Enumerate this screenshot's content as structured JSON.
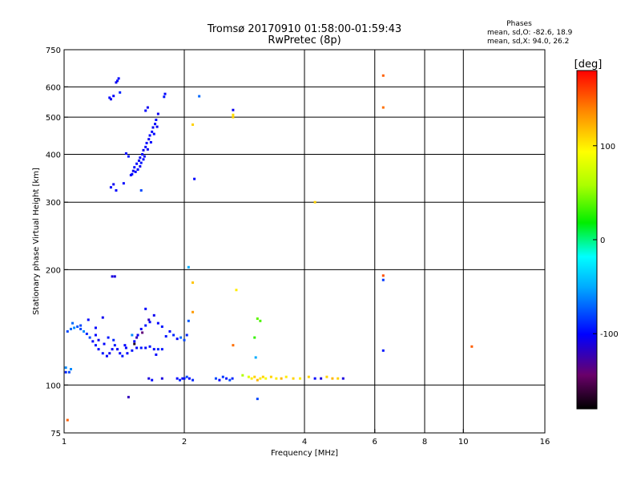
{
  "chart_data": {
    "type": "scatter",
    "title": "Tromsø 20170910 01:58:00-01:59:43",
    "subtitle": "RwPretec (8p)",
    "xlabel": "Frequency [MHz]",
    "ylabel": "Stationary phase Virtual Height [km]",
    "x_scale": "log",
    "y_scale": "log",
    "xlim": [
      1,
      16
    ],
    "ylim": [
      75,
      750
    ],
    "x_ticks": [
      1,
      2,
      4,
      6,
      8,
      10,
      16
    ],
    "y_ticks": [
      75,
      100,
      200,
      300,
      400,
      500,
      600,
      750
    ],
    "x_grid": [
      2,
      4,
      6,
      8,
      10
    ],
    "y_grid": [
      100,
      200,
      300,
      400,
      500,
      600
    ],
    "grid": true,
    "stats": {
      "title": "Phases",
      "line1": "mean, sd,O: -82.6, 18.9",
      "line2": "mean, sd,X:  94.0, 26.2"
    },
    "colorbar": {
      "label": "[deg]",
      "min": -180,
      "max": 180,
      "ticks": [
        100,
        0,
        -100
      ]
    },
    "points": [
      [
        1.37,
        631,
        -100
      ],
      [
        1.36,
        622,
        -100
      ],
      [
        1.35,
        616,
        -105
      ],
      [
        1.3,
        562,
        -100
      ],
      [
        1.31,
        557,
        -105
      ],
      [
        1.33,
        568,
        -100
      ],
      [
        1.38,
        580,
        -90
      ],
      [
        1.79,
        575,
        -100
      ],
      [
        1.78,
        565,
        -95
      ],
      [
        1.43,
        402,
        -100
      ],
      [
        1.45,
        395,
        -95
      ],
      [
        2.18,
        567,
        -70
      ],
      [
        2.65,
        522,
        -105
      ],
      [
        2.12,
        345,
        -100
      ],
      [
        1.56,
        322,
        -80
      ],
      [
        1.31,
        328,
        -100
      ],
      [
        1.33,
        334,
        -105
      ],
      [
        1.35,
        322,
        -100
      ],
      [
        1.41,
        336,
        -100
      ],
      [
        1.47,
        353,
        -100
      ],
      [
        1.49,
        362,
        -105
      ],
      [
        1.52,
        378,
        -100
      ],
      [
        1.55,
        392,
        -100
      ],
      [
        1.58,
        410,
        -105
      ],
      [
        1.61,
        428,
        -100
      ],
      [
        1.64,
        448,
        -100
      ],
      [
        1.67,
        470,
        -105
      ],
      [
        1.7,
        492,
        -100
      ],
      [
        1.72,
        510,
        -105
      ],
      [
        1.5,
        370,
        -100
      ],
      [
        1.54,
        385,
        -105
      ],
      [
        1.57,
        400,
        -100
      ],
      [
        1.6,
        418,
        -100
      ],
      [
        1.63,
        438,
        -105
      ],
      [
        1.66,
        458,
        -100
      ],
      [
        1.69,
        480,
        -100
      ],
      [
        1.53,
        365,
        -100
      ],
      [
        1.56,
        380,
        -95
      ],
      [
        1.59,
        395,
        -100
      ],
      [
        1.62,
        412,
        -105
      ],
      [
        1.65,
        430,
        -100
      ],
      [
        1.68,
        452,
        -100
      ],
      [
        1.71,
        472,
        -105
      ],
      [
        1.6,
        520,
        -100
      ],
      [
        1.62,
        530,
        -105
      ],
      [
        1.48,
        355,
        -100
      ],
      [
        1.51,
        360,
        -100
      ],
      [
        1.55,
        372,
        -105
      ],
      [
        1.58,
        388,
        -100
      ],
      [
        2.1,
        478,
        110
      ],
      [
        2.65,
        507,
        105
      ],
      [
        2.65,
        500,
        110
      ],
      [
        4.25,
        300,
        110
      ],
      [
        6.3,
        642,
        150
      ],
      [
        6.3,
        530,
        145
      ],
      [
        6.3,
        193,
        155
      ],
      [
        6.3,
        188,
        -85
      ],
      [
        6.3,
        123,
        -95
      ],
      [
        10.5,
        126,
        150
      ],
      [
        2.05,
        203,
        -50
      ],
      [
        1.32,
        192,
        -110
      ],
      [
        1.34,
        192,
        -110
      ],
      [
        2.1,
        185,
        115
      ],
      [
        2.7,
        177,
        100
      ],
      [
        2.1,
        155,
        130
      ],
      [
        3.05,
        149,
        40
      ],
      [
        3.1,
        147,
        35
      ],
      [
        3.0,
        133,
        30
      ],
      [
        2.65,
        127,
        145
      ],
      [
        3.02,
        118,
        -50
      ],
      [
        1.02,
        138,
        -80
      ],
      [
        1.04,
        140,
        -70
      ],
      [
        1.06,
        141,
        -60
      ],
      [
        1.08,
        142,
        -75
      ],
      [
        1.1,
        140,
        -80
      ],
      [
        1.12,
        138,
        -60
      ],
      [
        1.14,
        136,
        -90
      ],
      [
        1.16,
        133,
        -80
      ],
      [
        1.18,
        130,
        -100
      ],
      [
        1.2,
        127,
        -95
      ],
      [
        1.22,
        124,
        -100
      ],
      [
        1.25,
        121,
        -95
      ],
      [
        1.28,
        119,
        -100
      ],
      [
        1.3,
        121,
        -105
      ],
      [
        1.32,
        124,
        -100
      ],
      [
        1.34,
        127,
        -95
      ],
      [
        1.36,
        124,
        -105
      ],
      [
        1.38,
        121,
        -100
      ],
      [
        1.4,
        119,
        -95
      ],
      [
        1.44,
        121,
        -100
      ],
      [
        1.48,
        123,
        -95
      ],
      [
        1.52,
        125,
        -100
      ],
      [
        1.56,
        125,
        -95
      ],
      [
        1.6,
        125,
        -100
      ],
      [
        1.64,
        126,
        -95
      ],
      [
        1.68,
        124,
        -100
      ],
      [
        1.72,
        124,
        -90
      ],
      [
        1.76,
        124,
        -95
      ],
      [
        1.8,
        134,
        -95
      ],
      [
        1.84,
        138,
        -100
      ],
      [
        1.88,
        135,
        -90
      ],
      [
        1.92,
        132,
        -100
      ],
      [
        1.96,
        133,
        -70
      ],
      [
        2.0,
        131,
        -80
      ],
      [
        2.03,
        135,
        -90
      ],
      [
        2.05,
        147,
        -75
      ],
      [
        1.2,
        135,
        -100
      ],
      [
        1.22,
        131,
        -105
      ],
      [
        1.26,
        128,
        -100
      ],
      [
        1.29,
        133,
        -95
      ],
      [
        1.5,
        130,
        -100
      ],
      [
        1.53,
        135,
        -105
      ],
      [
        1.56,
        140,
        -100
      ],
      [
        1.6,
        143,
        -95
      ],
      [
        1.64,
        146,
        -100
      ],
      [
        1.68,
        152,
        -105
      ],
      [
        1.72,
        145,
        -100
      ],
      [
        1.76,
        142,
        -95
      ],
      [
        1.15,
        148,
        -100
      ],
      [
        1.25,
        150,
        -105
      ],
      [
        1.48,
        135,
        -60
      ],
      [
        1.5,
        128,
        -170
      ],
      [
        1.6,
        158,
        -100
      ],
      [
        1.63,
        148,
        -120
      ],
      [
        1.57,
        137,
        -140
      ],
      [
        1.52,
        133,
        -120
      ],
      [
        1.43,
        125,
        -100
      ],
      [
        1.2,
        141,
        -100
      ],
      [
        1.1,
        143,
        -80
      ],
      [
        1.05,
        145,
        -70
      ],
      [
        1.01,
        111,
        -60
      ],
      [
        1.04,
        110,
        -60
      ],
      [
        1.03,
        108,
        -80
      ],
      [
        1.01,
        108,
        -90
      ],
      [
        1.42,
        127,
        -100
      ],
      [
        1.33,
        131,
        -90
      ],
      [
        1.7,
        120,
        -100
      ],
      [
        1.63,
        104,
        -110
      ],
      [
        1.66,
        103,
        -100
      ],
      [
        1.76,
        104,
        -110
      ],
      [
        1.92,
        104,
        -100
      ],
      [
        1.95,
        103,
        -90
      ],
      [
        1.98,
        104,
        -100
      ],
      [
        2.0,
        104,
        -95
      ],
      [
        2.03,
        105,
        -80
      ],
      [
        2.06,
        104,
        -100
      ],
      [
        2.1,
        103,
        -90
      ],
      [
        2.4,
        104,
        -80
      ],
      [
        2.45,
        103,
        -100
      ],
      [
        2.5,
        105,
        -85
      ],
      [
        2.55,
        104,
        -95
      ],
      [
        2.6,
        103,
        -80
      ],
      [
        2.64,
        104,
        -90
      ],
      [
        2.8,
        106,
        60
      ],
      [
        2.9,
        105,
        80
      ],
      [
        2.95,
        104,
        100
      ],
      [
        3.0,
        105,
        110
      ],
      [
        3.05,
        103,
        120
      ],
      [
        3.1,
        104,
        100
      ],
      [
        3.15,
        105,
        110
      ],
      [
        3.2,
        104,
        90
      ],
      [
        3.3,
        105,
        110
      ],
      [
        3.4,
        104,
        100
      ],
      [
        3.5,
        104,
        120
      ],
      [
        3.6,
        105,
        100
      ],
      [
        3.75,
        104,
        110
      ],
      [
        3.9,
        104,
        100
      ],
      [
        4.1,
        105,
        110
      ],
      [
        4.25,
        104,
        -100
      ],
      [
        4.4,
        104,
        -110
      ],
      [
        4.55,
        105,
        110
      ],
      [
        4.7,
        104,
        120
      ],
      [
        4.85,
        104,
        110
      ],
      [
        5.0,
        104,
        -110
      ],
      [
        3.05,
        92,
        -80
      ],
      [
        1.45,
        93,
        -120
      ],
      [
        1.02,
        81,
        150
      ]
    ]
  }
}
